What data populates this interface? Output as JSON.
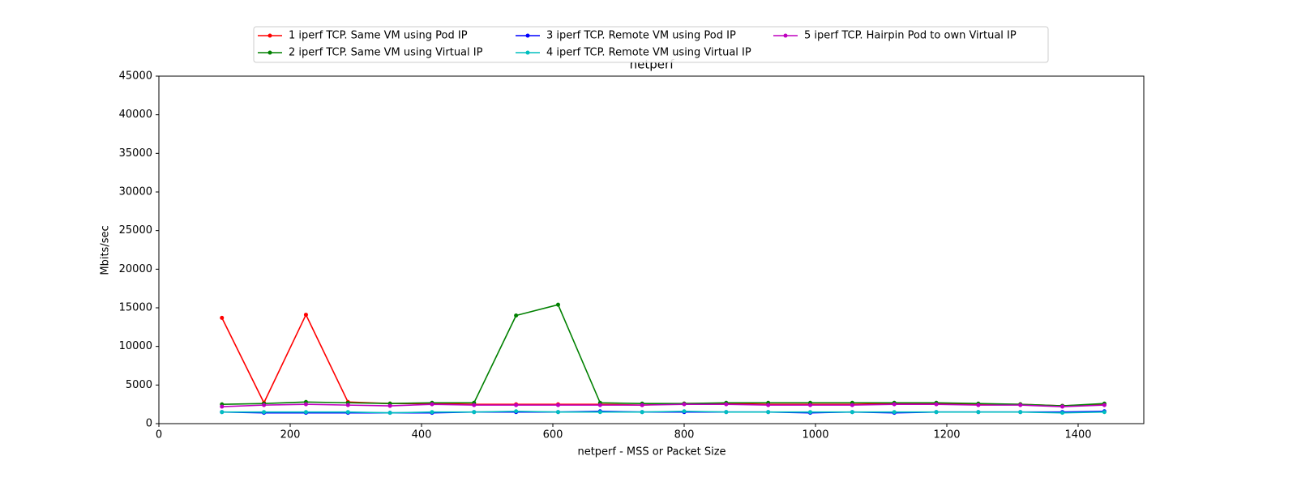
{
  "chart_data": {
    "type": "line",
    "title": "netperf",
    "x_label": "netperf - MSS or Packet Size",
    "y_label": "Mbits/sec",
    "x": [
      96,
      160,
      224,
      288,
      352,
      416,
      480,
      544,
      608,
      672,
      736,
      800,
      864,
      928,
      992,
      1056,
      1120,
      1184,
      1248,
      1312,
      1376,
      1440
    ],
    "series": [
      {
        "name": "1 iperf TCP. Same VM using Pod IP",
        "color": "#ff0000",
        "values": [
          13700,
          2700,
          14100,
          2800,
          2600,
          2600,
          2500,
          2500,
          2500,
          2500,
          2400,
          2600,
          2600,
          2500,
          2500,
          2500,
          2600,
          2600,
          2500,
          2500,
          2300,
          2500
        ]
      },
      {
        "name": "2 iperf TCP. Same VM using Virtual IP",
        "color": "#008000",
        "values": [
          2500,
          2600,
          2800,
          2700,
          2600,
          2700,
          2700,
          14000,
          15400,
          2700,
          2600,
          2600,
          2700,
          2700,
          2700,
          2700,
          2700,
          2700,
          2600,
          2500,
          2300,
          2600
        ]
      },
      {
        "name": "3 iperf TCP. Remote VM using Pod IP",
        "color": "#0000ff",
        "values": [
          1500,
          1400,
          1400,
          1400,
          1400,
          1400,
          1500,
          1500,
          1500,
          1600,
          1500,
          1500,
          1500,
          1500,
          1400,
          1500,
          1400,
          1500,
          1500,
          1500,
          1500,
          1600
        ]
      },
      {
        "name": "4 iperf TCP. Remote VM using Virtual IP",
        "color": "#00bfbf",
        "values": [
          1500,
          1500,
          1500,
          1500,
          1400,
          1500,
          1500,
          1600,
          1500,
          1500,
          1500,
          1600,
          1500,
          1500,
          1500,
          1500,
          1500,
          1500,
          1500,
          1500,
          1400,
          1500
        ]
      },
      {
        "name": "5 iperf TCP. Hairpin Pod to own Virtual IP",
        "color": "#bf00bf",
        "values": [
          2200,
          2400,
          2500,
          2400,
          2300,
          2500,
          2400,
          2400,
          2400,
          2400,
          2400,
          2500,
          2500,
          2400,
          2400,
          2400,
          2500,
          2500,
          2400,
          2400,
          2200,
          2400
        ]
      }
    ],
    "xlim": [
      0,
      1500
    ],
    "xticks": [
      0,
      200,
      400,
      600,
      800,
      1000,
      1200,
      1400
    ],
    "ylim": [
      0,
      45000
    ],
    "yticks": [
      0,
      5000,
      10000,
      15000,
      20000,
      25000,
      30000,
      35000,
      40000,
      45000
    ],
    "grid": false,
    "legend": "upper center"
  }
}
